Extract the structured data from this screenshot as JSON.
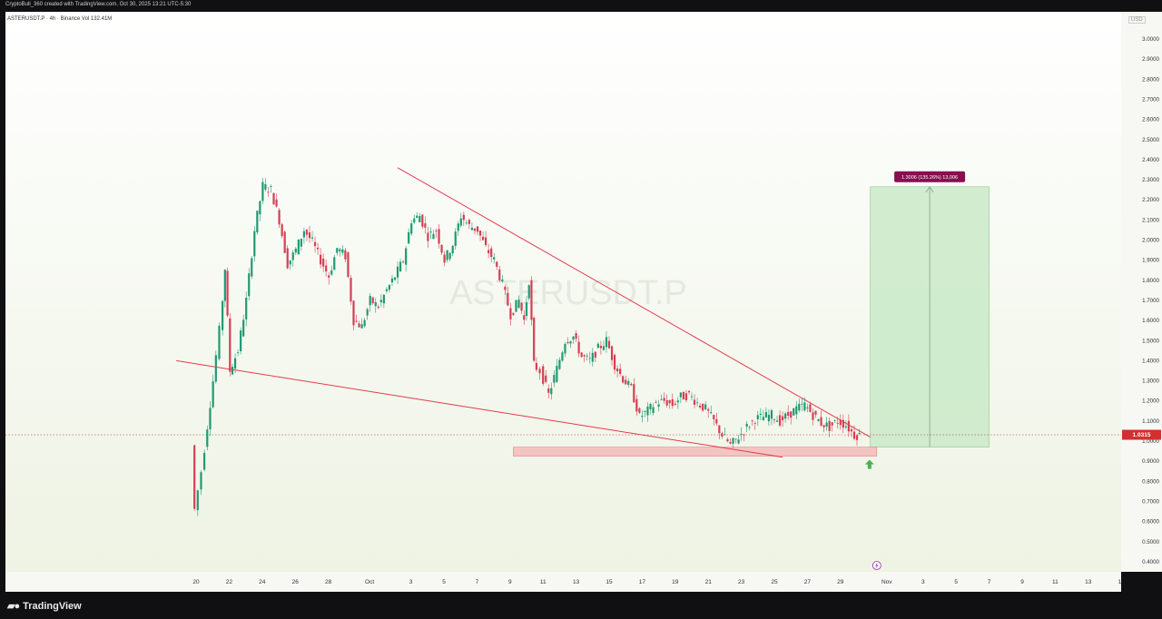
{
  "header": {
    "caption": "CryptoBull_360 created with TradingView.com, Oct 30, 2025 13:21 UTC-5:30",
    "legend": "ASTERUSDT.P · 4h · Binance  Vol 132.41M"
  },
  "watermark": "ASTERUSDT.P",
  "currency": "USD",
  "footer": {
    "brand": "TradingView",
    "logo_icon": "tradingview-logo-icon"
  },
  "colors": {
    "up": "#1f9a73",
    "down": "#d53f55",
    "trendline": "#e23b4e",
    "support_zone": "#f2b8b8",
    "target_zone": "#c7e9c6",
    "label_bg": "#880e4f",
    "price_label_bg": "#d32f2f",
    "arrow": "#4caf50"
  },
  "chart_data": {
    "type": "candlestick",
    "symbol": "ASTERUSDT.P",
    "interval": "4h",
    "exchange": "Binance",
    "y_ticks": [
      "3.0000",
      "2.9000",
      "2.8000",
      "2.7000",
      "2.6000",
      "2.5000",
      "2.4000",
      "2.3000",
      "2.2000",
      "2.1000",
      "2.0000",
      "1.9000",
      "1.8000",
      "1.7000",
      "1.6000",
      "1.5000",
      "1.4000",
      "1.3000",
      "1.2000",
      "1.1000",
      "1.0000",
      "0.9000",
      "0.8000",
      "0.7000",
      "0.6000",
      "0.5000",
      "0.4000"
    ],
    "x_ticks": [
      {
        "day": 20,
        "label": "20"
      },
      {
        "day": 22,
        "label": "22"
      },
      {
        "day": 24,
        "label": "24"
      },
      {
        "day": 26,
        "label": "26"
      },
      {
        "day": 28,
        "label": "28"
      },
      {
        "day": 30.5,
        "label": "Oct"
      },
      {
        "day": 33,
        "label": "3"
      },
      {
        "day": 35,
        "label": "5"
      },
      {
        "day": 37,
        "label": "7"
      },
      {
        "day": 39,
        "label": "9"
      },
      {
        "day": 41,
        "label": "11"
      },
      {
        "day": 43,
        "label": "13"
      },
      {
        "day": 45,
        "label": "15"
      },
      {
        "day": 47,
        "label": "17"
      },
      {
        "day": 49,
        "label": "19"
      },
      {
        "day": 51,
        "label": "21"
      },
      {
        "day": 53,
        "label": "23"
      },
      {
        "day": 55,
        "label": "25"
      },
      {
        "day": 57,
        "label": "27"
      },
      {
        "day": 59,
        "label": "29"
      },
      {
        "day": 61.8,
        "label": "Nov"
      },
      {
        "day": 64,
        "label": "3"
      },
      {
        "day": 66,
        "label": "5"
      },
      {
        "day": 68,
        "label": "7"
      },
      {
        "day": 70,
        "label": "9"
      },
      {
        "day": 72,
        "label": "11"
      },
      {
        "day": 74,
        "label": "13"
      },
      {
        "day": 75.9,
        "label": "1"
      }
    ],
    "price_levels": [
      {
        "day": 19.9,
        "price": 0.98
      },
      {
        "day": 20.1,
        "price": 0.66
      },
      {
        "day": 20.5,
        "price": 0.85
      },
      {
        "day": 21.2,
        "price": 1.3
      },
      {
        "day": 21.6,
        "price": 1.55
      },
      {
        "day": 21.9,
        "price": 1.86
      },
      {
        "day": 22.2,
        "price": 1.35
      },
      {
        "day": 22.7,
        "price": 1.45
      },
      {
        "day": 23.2,
        "price": 1.7
      },
      {
        "day": 23.7,
        "price": 2.05
      },
      {
        "day": 24.2,
        "price": 2.27
      },
      {
        "day": 24.7,
        "price": 2.25
      },
      {
        "day": 25.2,
        "price": 2.1
      },
      {
        "day": 25.7,
        "price": 1.88
      },
      {
        "day": 26.2,
        "price": 1.95
      },
      {
        "day": 26.7,
        "price": 2.05
      },
      {
        "day": 27.2,
        "price": 1.99
      },
      {
        "day": 27.7,
        "price": 1.9
      },
      {
        "day": 28.2,
        "price": 1.82
      },
      {
        "day": 28.7,
        "price": 1.96
      },
      {
        "day": 29.2,
        "price": 1.92
      },
      {
        "day": 29.7,
        "price": 1.6
      },
      {
        "day": 30.2,
        "price": 1.57
      },
      {
        "day": 30.7,
        "price": 1.7
      },
      {
        "day": 31.2,
        "price": 1.67
      },
      {
        "day": 31.7,
        "price": 1.75
      },
      {
        "day": 32.2,
        "price": 1.82
      },
      {
        "day": 32.7,
        "price": 1.9
      },
      {
        "day": 33.2,
        "price": 2.1
      },
      {
        "day": 33.7,
        "price": 2.12
      },
      {
        "day": 34.2,
        "price": 2.02
      },
      {
        "day": 34.7,
        "price": 2.05
      },
      {
        "day": 35.2,
        "price": 1.9
      },
      {
        "day": 35.7,
        "price": 1.98
      },
      {
        "day": 36.2,
        "price": 2.12
      },
      {
        "day": 36.7,
        "price": 2.07
      },
      {
        "day": 37.2,
        "price": 2.05
      },
      {
        "day": 37.7,
        "price": 1.96
      },
      {
        "day": 38.2,
        "price": 1.9
      },
      {
        "day": 38.7,
        "price": 1.78
      },
      {
        "day": 39.2,
        "price": 1.63
      },
      {
        "day": 39.7,
        "price": 1.7
      },
      {
        "day": 40.0,
        "price": 1.6
      },
      {
        "day": 40.3,
        "price": 1.8
      },
      {
        "day": 40.6,
        "price": 1.38
      },
      {
        "day": 41.0,
        "price": 1.35
      },
      {
        "day": 41.5,
        "price": 1.23
      },
      {
        "day": 42.0,
        "price": 1.36
      },
      {
        "day": 42.5,
        "price": 1.5
      },
      {
        "day": 43.0,
        "price": 1.52
      },
      {
        "day": 43.5,
        "price": 1.42
      },
      {
        "day": 44.0,
        "price": 1.4
      },
      {
        "day": 44.5,
        "price": 1.46
      },
      {
        "day": 45.0,
        "price": 1.5
      },
      {
        "day": 45.5,
        "price": 1.38
      },
      {
        "day": 46.0,
        "price": 1.31
      },
      {
        "day": 46.5,
        "price": 1.26
      },
      {
        "day": 47.0,
        "price": 1.12
      },
      {
        "day": 47.5,
        "price": 1.15
      },
      {
        "day": 48.0,
        "price": 1.19
      },
      {
        "day": 48.5,
        "price": 1.2
      },
      {
        "day": 49.0,
        "price": 1.18
      },
      {
        "day": 49.5,
        "price": 1.22
      },
      {
        "day": 50.0,
        "price": 1.23
      },
      {
        "day": 50.5,
        "price": 1.19
      },
      {
        "day": 51.0,
        "price": 1.16
      },
      {
        "day": 51.5,
        "price": 1.1
      },
      {
        "day": 52.0,
        "price": 1.03
      },
      {
        "day": 52.5,
        "price": 0.98
      },
      {
        "day": 53.0,
        "price": 1.02
      },
      {
        "day": 53.5,
        "price": 1.07
      },
      {
        "day": 54.0,
        "price": 1.11
      },
      {
        "day": 54.5,
        "price": 1.12
      },
      {
        "day": 55.0,
        "price": 1.13
      },
      {
        "day": 55.5,
        "price": 1.1
      },
      {
        "day": 56.0,
        "price": 1.13
      },
      {
        "day": 56.5,
        "price": 1.16
      },
      {
        "day": 57.0,
        "price": 1.18
      },
      {
        "day": 57.5,
        "price": 1.13
      },
      {
        "day": 58.0,
        "price": 1.09
      },
      {
        "day": 58.5,
        "price": 1.07
      },
      {
        "day": 59.0,
        "price": 1.1
      },
      {
        "day": 59.5,
        "price": 1.08
      },
      {
        "day": 60.0,
        "price": 1.03
      },
      {
        "day": 60.3,
        "price": 1.03
      }
    ],
    "current_price": 1.0315,
    "current_price_label": "1.0315",
    "drawings": {
      "resistance_line": {
        "from": {
          "day": 32.2,
          "price": 2.36
        },
        "to": {
          "day": 60.8,
          "price": 1.02
        }
      },
      "support_line": {
        "from": {
          "day": 18.8,
          "price": 1.4
        },
        "to": {
          "day": 55.5,
          "price": 0.92
        }
      },
      "support_zone": {
        "day_start": 39.2,
        "day_end": 61.2,
        "price_top": 0.97,
        "price_bottom": 0.925
      },
      "target_zone": {
        "day_start": 60.8,
        "day_end": 68.0,
        "price_bottom": 0.97,
        "price_top": 2.265
      },
      "target_label": "1.3006 (135.26%) 13,006"
    }
  }
}
